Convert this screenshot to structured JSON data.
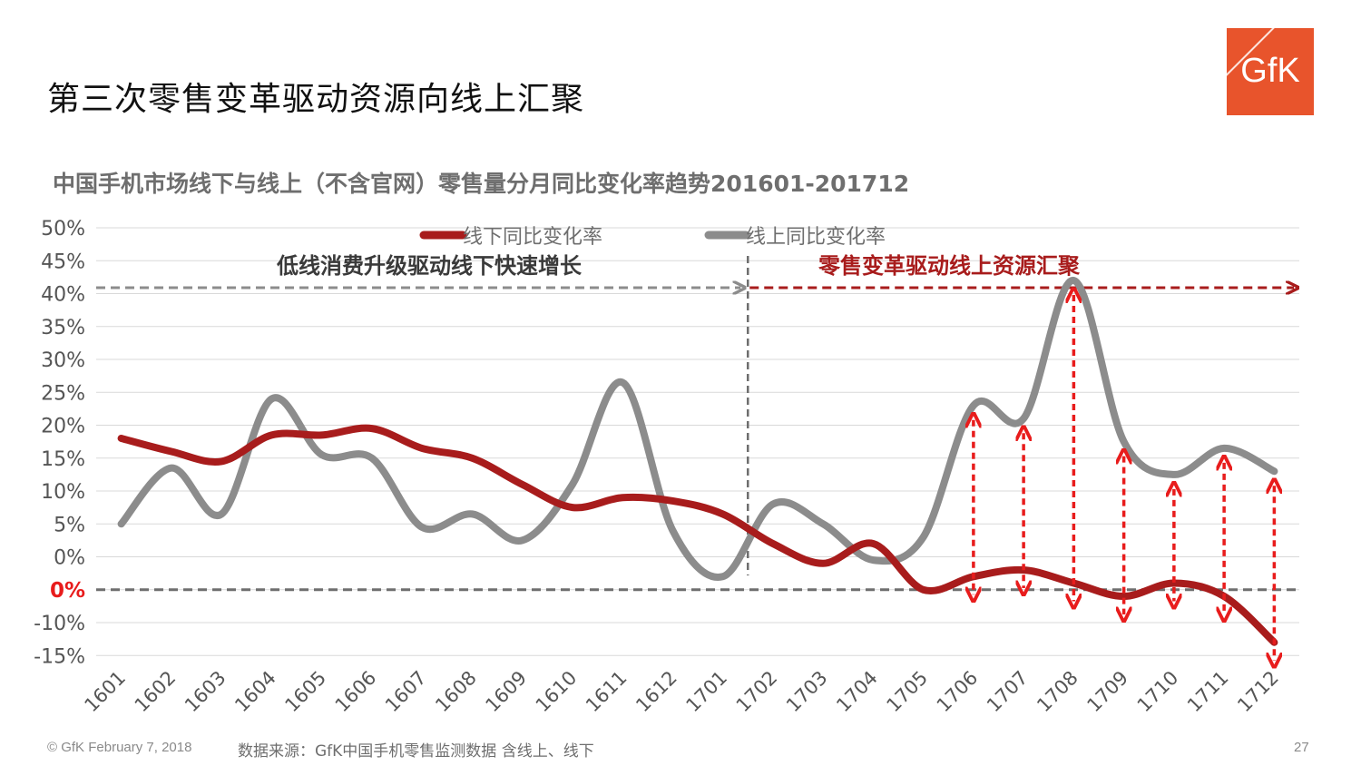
{
  "slide": {
    "title": "第三次零售变革驱动资源向线上汇聚",
    "logo_text": "GfK",
    "footer_left": "© GfK February 7, 2018",
    "footer_source": "数据来源：GfK中国手机零售监测数据 含线上、线下",
    "page_number": "27"
  },
  "colors": {
    "offline": "#a81c1c",
    "online": "#8c8c8c",
    "arrow": "#e81c1c",
    "logo_bg": "#e8542c"
  },
  "chart_data": {
    "type": "line",
    "title": "中国手机市场线下与线上（不含官网）零售量分月同比变化率趋势201601-201712",
    "categories": [
      "1601",
      "1602",
      "1603",
      "1604",
      "1605",
      "1606",
      "1607",
      "1608",
      "1609",
      "1610",
      "1611",
      "1612",
      "1701",
      "1702",
      "1703",
      "1704",
      "1705",
      "1706",
      "1707",
      "1708",
      "1709",
      "1710",
      "1711",
      "1712"
    ],
    "series": [
      {
        "name": "线下同比变化率",
        "values": [
          18,
          16,
          14.5,
          18.5,
          18.5,
          19.5,
          16.5,
          15,
          11,
          7.5,
          9,
          8.5,
          6.5,
          2,
          -1,
          2,
          -5,
          -3,
          -2,
          -4,
          -6,
          -4,
          -6,
          -13
        ]
      },
      {
        "name": "线上同比变化率",
        "values": [
          5,
          13.5,
          6.5,
          24,
          15.5,
          15,
          4.5,
          6.5,
          2.5,
          11,
          26.5,
          4,
          -3,
          8,
          5,
          -0.5,
          3,
          23,
          21,
          42,
          17.5,
          12.5,
          16.5,
          13
        ]
      }
    ],
    "yticks": [
      "50%",
      "45%",
      "40%",
      "35%",
      "30%",
      "25%",
      "20%",
      "15%",
      "10%",
      "5%",
      "0%",
      "0%",
      "-10%",
      "-15%"
    ],
    "ylim": [
      -15,
      50
    ],
    "zero_marker_label": "0%",
    "zero_line_value": -5,
    "period_divider_after": "1701",
    "annotations": {
      "left_label": "低线消费升级驱动线下快速增长",
      "right_label": "零售变革驱动线上资源汇聚"
    },
    "gap_arrow_categories": [
      "1706",
      "1707",
      "1708",
      "1709",
      "1710",
      "1711",
      "1712"
    ],
    "grid": true,
    "legend_position": "top-center"
  }
}
